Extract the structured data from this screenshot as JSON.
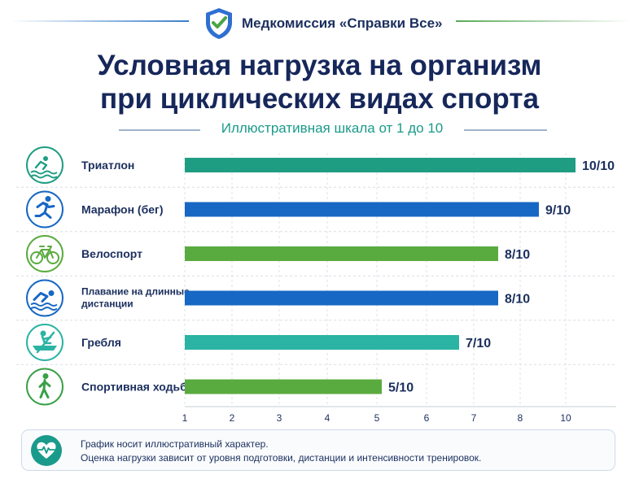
{
  "header": {
    "brand_name": "Медкомиссия «Справки Все»",
    "title_line1": "Условная нагрузка на организм",
    "title_line2": "при циклических видах спорта",
    "subtitle": "Иллюстративная шкала от 1 до 10"
  },
  "colors": {
    "navy": "#16275a",
    "teal": "#1f9d82",
    "blue": "#1767c4",
    "green": "#5aab3f",
    "cyan": "#2bb3a4"
  },
  "chart_data": {
    "type": "bar",
    "orientation": "horizontal",
    "categories": [
      "Триатлон",
      "Марафон (бег)",
      "Велоспорт",
      "Плавание на длинные дистанции",
      "Гребля",
      "Спортивная ходьба"
    ],
    "category_lines": [
      [
        "Триатлон"
      ],
      [
        "Марафон (бег)"
      ],
      [
        "Велоспорт"
      ],
      [
        "Плавание на длинные",
        "дистанции"
      ],
      [
        "Гребля"
      ],
      [
        "Спортивная ходьба"
      ]
    ],
    "values": [
      10,
      9,
      8,
      8,
      7,
      5
    ],
    "value_labels": [
      "10/10",
      "9/10",
      "8/10",
      "8/10",
      "7/10",
      "5/10"
    ],
    "bar_colors": [
      "#1f9d82",
      "#1767c4",
      "#5aab3f",
      "#1767c4",
      "#2bb3a4",
      "#5aab3f"
    ],
    "icons": [
      "triathlon-icon",
      "runner-icon",
      "bicycle-icon",
      "swimmer-icon",
      "rowing-icon",
      "walker-icon"
    ],
    "xticks": [
      1,
      2,
      3,
      4,
      5,
      6,
      7,
      8,
      10
    ],
    "xlim": [
      1,
      10.7
    ],
    "grid": true,
    "xlabel": "",
    "ylabel": ""
  },
  "note": {
    "icon": "heart-pulse-icon",
    "line1": "График носит иллюстративный характер.",
    "line2": "Оценка нагрузки зависит от уровня подготовки,  дистанции и интенсивности тренировок."
  }
}
